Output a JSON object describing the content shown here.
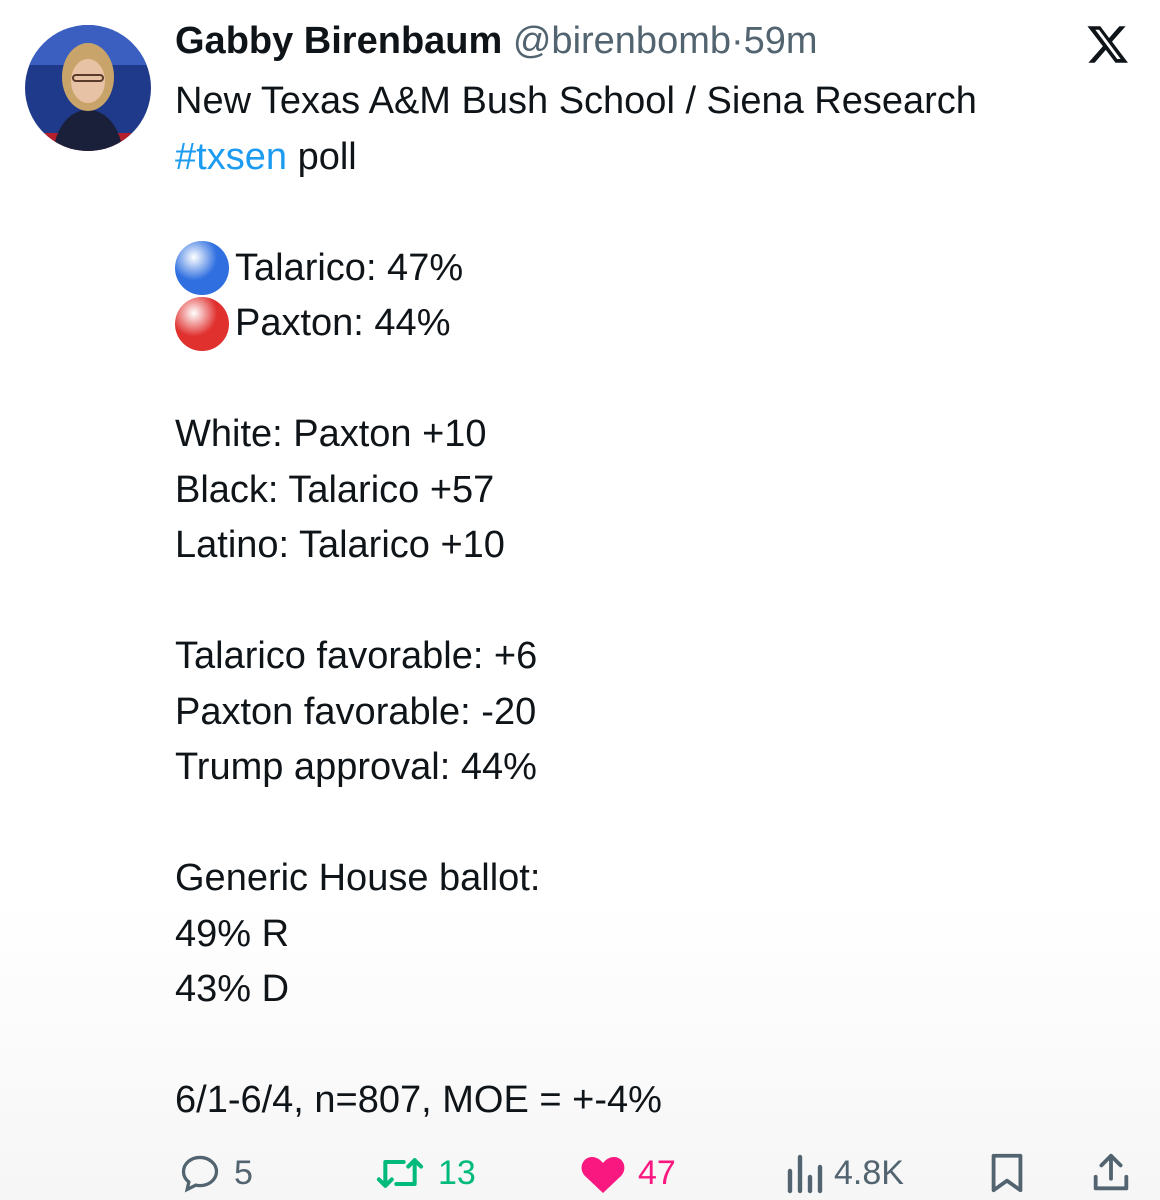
{
  "author": {
    "name": "Gabby Birenbaum",
    "handle": "@birenbomb",
    "separator": "·",
    "time": "59m"
  },
  "body": {
    "paragraphs": [
      [
        {
          "text": "New Texas A&M Bush School / Siena Research"
        },
        {
          "hashtag": "#txsen",
          "text": "poll"
        }
      ],
      [
        {
          "marker_color": "#2f6fe0",
          "text": "Talarico: 47%"
        },
        {
          "marker_color": "#e0312f",
          "text": "Paxton: 44%"
        }
      ],
      [
        {
          "text": "White: Paxton +10"
        },
        {
          "text": "Black: Talarico +57"
        },
        {
          "text": "Latino: Talarico +10"
        }
      ],
      [
        {
          "text": "Talarico favorable: +6"
        },
        {
          "text": "Paxton favorable: -20"
        },
        {
          "text": "Trump approval: 44%"
        }
      ],
      [
        {
          "text": "Generic House ballot:"
        },
        {
          "text": "49% R"
        },
        {
          "text": "43% D"
        }
      ],
      [
        {
          "text": "6/1-6/4, n=807, MOE = +-4%"
        }
      ]
    ]
  },
  "stats": {
    "replies": 5,
    "reposts": 13,
    "likes": 47,
    "views": "4.8K"
  }
}
